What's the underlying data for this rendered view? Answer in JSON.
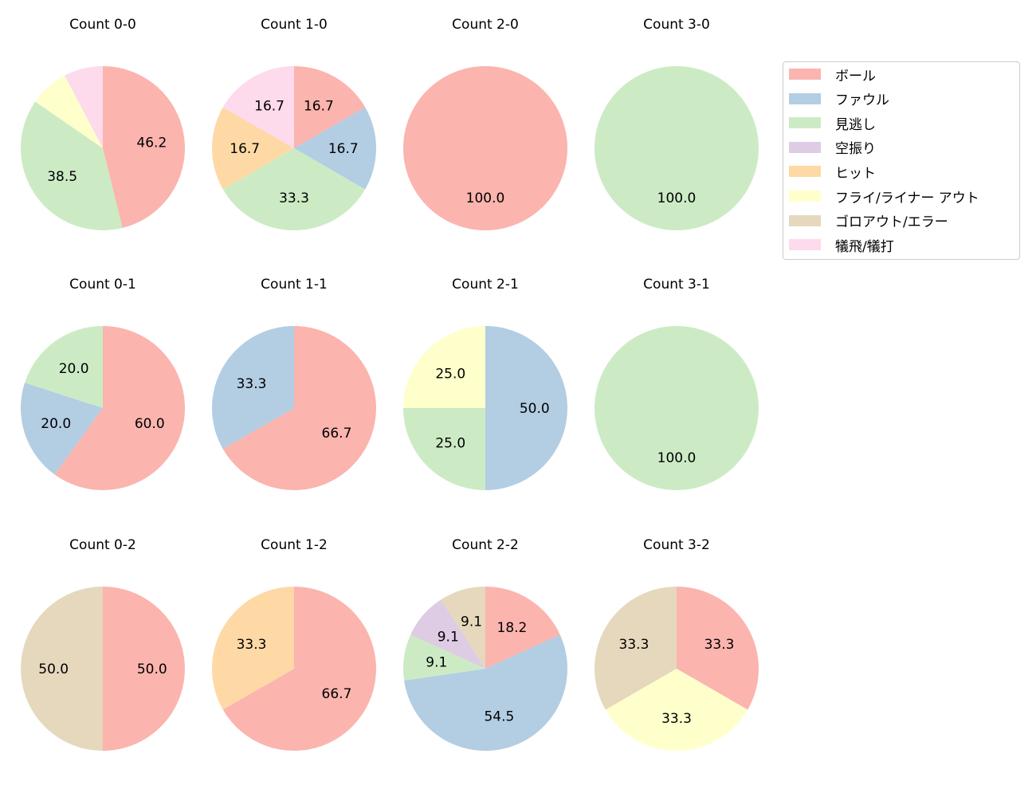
{
  "chart_data": {
    "type": "pie",
    "categories": [
      "ボール",
      "ファウル",
      "見逃し",
      "空振り",
      "ヒット",
      "フライ/ライナー アウト",
      "ゴロアウト/エラー",
      "犠飛/犠打"
    ],
    "colors": [
      "#fbb4ae",
      "#b3cde3",
      "#ccebc5",
      "#decbe4",
      "#fed9a6",
      "#ffffcc",
      "#e5d8bd",
      "#fddaec"
    ],
    "legend_position": "right",
    "charts": [
      {
        "title": "Count 0-0",
        "values": [
          46.2,
          0,
          38.5,
          0,
          0,
          7.7,
          0,
          7.7
        ]
      },
      {
        "title": "Count 1-0",
        "values": [
          16.7,
          16.7,
          33.3,
          0,
          16.7,
          0,
          0,
          16.7
        ]
      },
      {
        "title": "Count 2-0",
        "values": [
          100,
          0,
          0,
          0,
          0,
          0,
          0,
          0
        ]
      },
      {
        "title": "Count 3-0",
        "values": [
          0,
          0,
          100,
          0,
          0,
          0,
          0,
          0
        ]
      },
      {
        "title": "Count 0-1",
        "values": [
          60,
          20,
          20,
          0,
          0,
          0,
          0,
          0
        ]
      },
      {
        "title": "Count 1-1",
        "values": [
          66.7,
          33.3,
          0,
          0,
          0,
          0,
          0,
          0
        ]
      },
      {
        "title": "Count 2-1",
        "values": [
          0,
          50,
          25,
          0,
          0,
          25,
          0,
          0
        ]
      },
      {
        "title": "Count 3-1",
        "values": [
          0,
          0,
          100,
          0,
          0,
          0,
          0,
          0
        ]
      },
      {
        "title": "Count 0-2",
        "values": [
          50,
          0,
          0,
          0,
          0,
          0,
          50,
          0
        ]
      },
      {
        "title": "Count 1-2",
        "values": [
          66.7,
          0,
          0,
          0,
          33.3,
          0,
          0,
          0
        ]
      },
      {
        "title": "Count 2-2",
        "values": [
          18.2,
          54.5,
          9.1,
          9.1,
          0,
          0,
          9.1,
          0
        ]
      },
      {
        "title": "Count 3-2",
        "values": [
          33.3,
          0,
          0,
          0,
          0,
          33.3,
          33.3,
          0
        ]
      }
    ]
  }
}
